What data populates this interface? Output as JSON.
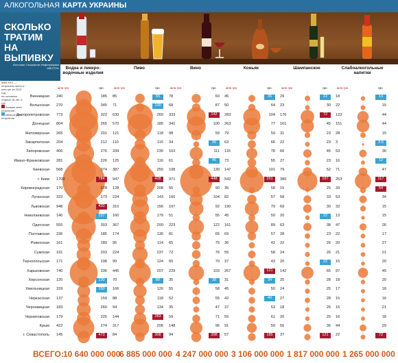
{
  "header": {
    "title_a": "АЛКОГОЛЬНАЯ",
    "title_b": "КАРТА УКРАИНЫ"
  },
  "hero": {
    "title": "СКОЛЬКО ТРАТИМ НА ВЫПИВКУ",
    "source": "Источник: Госкомстат Инфографика «ВЕСТИ»"
  },
  "legend": {
    "item1": "XXX — потрачено всего в млн грн за 2012 год",
    "item2": "на человека старше 18 лет, в грн",
    "item3": "больше всех потратили",
    "item4": "меньше всех потратили",
    "xxx": "XXX"
  },
  "colors": {
    "orange": "#ea7a3a",
    "dark_red": "#a8182e",
    "blue": "#3ba3d4",
    "brown": "#7a441c"
  },
  "categories": [
    {
      "label": "Водка и ликеро-водочные изделия",
      "total": "10 640 000 000",
      "icon": "vodka-bottle-icon"
    },
    {
      "label": "Пиво",
      "total": "6 885 000 000",
      "icon": "beer-icon"
    },
    {
      "label": "Вино",
      "total": "4 247 000 000",
      "icon": "wine-icon"
    },
    {
      "label": "Коньяк",
      "total": "3 106 000 000",
      "icon": "cognac-icon"
    },
    {
      "label": "Шампанское",
      "total": "1 817 000 000",
      "icon": "champagne-icon"
    },
    {
      "label": "Слабоалкогольные напитки",
      "total": "1 265 000 000",
      "icon": "low-alcohol-icon"
    }
  ],
  "col_headers": {
    "mln": "млн грн",
    "per": "грн"
  },
  "total_label": "ВСЕГО:",
  "rows": [
    {
      "name": "Винницкая",
      "v": [
        [
          "240",
          "185"
        ],
        [
          "85",
          "55"
        ],
        [
          "78",
          "60"
        ],
        [
          "45",
          "35"
        ],
        [
          "29",
          "22"
        ],
        [
          "18",
          "13"
        ]
      ]
    },
    {
      "name": "Волынская",
      "v": [
        [
          "270",
          "345"
        ],
        [
          "71",
          "100"
        ],
        [
          "68",
          "87"
        ],
        [
          "50",
          "64"
        ],
        [
          "23",
          "30"
        ],
        [
          "22",
          "15"
        ]
      ]
    },
    {
      "name": "Днепропетровская",
      "v": [
        [
          "773",
          "322"
        ],
        [
          "630",
          "260"
        ],
        [
          "333",
          "142"
        ],
        [
          "283",
          "104"
        ],
        [
          "176",
          "72"
        ],
        [
          "123",
          "44"
        ]
      ]
    },
    {
      "name": "Донецкая",
      "v": [
        [
          "804",
          "265"
        ],
        [
          "570",
          "185"
        ],
        [
          "341",
          "100"
        ],
        [
          "263",
          "77"
        ],
        [
          "161",
          "45"
        ],
        [
          "151",
          "44"
        ]
      ]
    },
    {
      "name": "Житомирская",
      "v": [
        [
          "265",
          "201"
        ],
        [
          "121",
          "118"
        ],
        [
          "98",
          "59"
        ],
        [
          "79",
          "59"
        ],
        [
          "31",
          "23"
        ],
        [
          "28",
          "15"
        ]
      ]
    },
    {
      "name": "Закарпатская",
      "v": [
        [
          "204",
          "212"
        ],
        [
          "110",
          "115"
        ],
        [
          "34",
          "36"
        ],
        [
          "63",
          "66"
        ],
        [
          "22",
          "23"
        ],
        [
          "3",
          "3.5"
        ]
      ]
    },
    {
      "name": "Запорожская",
      "v": [
        [
          "406",
          "276"
        ],
        [
          "339",
          "230"
        ],
        [
          "163",
          "111"
        ],
        [
          "115",
          "78"
        ],
        [
          "66",
          "45"
        ],
        [
          "53",
          "36"
        ]
      ]
    },
    {
      "name": "Ивано-Франковская",
      "v": [
        [
          "281",
          "226"
        ],
        [
          "125",
          "116"
        ],
        [
          "61",
          "46"
        ],
        [
          "73",
          "55"
        ],
        [
          "27",
          "23"
        ],
        [
          "16",
          "12"
        ]
      ]
    },
    {
      "name": "Киевская",
      "v": [
        [
          "568",
          "374"
        ],
        [
          "387",
          "255"
        ],
        [
          "198",
          "130"
        ],
        [
          "147",
          "101"
        ],
        [
          "79",
          "52"
        ],
        [
          "71",
          "47"
        ]
      ]
    },
    {
      "name": "г. Киев",
      "v": [
        [
          "1709",
          "784"
        ],
        [
          "947",
          "438"
        ],
        [
          "971",
          "448"
        ],
        [
          "542",
          "251"
        ],
        [
          "380",
          "167"
        ],
        [
          "253",
          "117"
        ]
      ]
    },
    {
      "name": "Кировоградская",
      "v": [
        [
          "170",
          "278"
        ],
        [
          "128",
          "208"
        ],
        [
          "55",
          "90"
        ],
        [
          "35",
          "58"
        ],
        [
          "15",
          "25"
        ],
        [
          "33",
          "54"
        ]
      ]
    },
    {
      "name": "Луганская",
      "v": [
        [
          "323",
          "173"
        ],
        [
          "224",
          "143"
        ],
        [
          "160",
          "104"
        ],
        [
          "82",
          "57"
        ],
        [
          "58",
          "33"
        ],
        [
          "53",
          "34"
        ]
      ]
    },
    {
      "name": "Львовская",
      "v": [
        [
          "948",
          "420"
        ],
        [
          "310",
          "156"
        ],
        [
          "197",
          "92"
        ],
        [
          "190",
          "79"
        ],
        [
          "69",
          "30"
        ],
        [
          "32",
          "15"
        ]
      ]
    },
    {
      "name": "Николаевская",
      "v": [
        [
          "140",
          "157"
        ],
        [
          "160",
          "179"
        ],
        [
          "51",
          "55"
        ],
        [
          "45",
          "50"
        ],
        [
          "20",
          "22"
        ],
        [
          "13",
          "15"
        ]
      ]
    },
    {
      "name": "Одесская",
      "v": [
        [
          "555",
          "303"
        ],
        [
          "367",
          "200"
        ],
        [
          "223",
          "122"
        ],
        [
          "161",
          "89"
        ],
        [
          "63",
          "38"
        ],
        [
          "47",
          "26"
        ]
      ]
    },
    {
      "name": "Полтавская",
      "v": [
        [
          "236",
          "185"
        ],
        [
          "174",
          "136"
        ],
        [
          "81",
          "65"
        ],
        [
          "69",
          "57"
        ],
        [
          "28",
          "23"
        ],
        [
          "22",
          "17"
        ]
      ]
    },
    {
      "name": "Ровенская",
      "v": [
        [
          "161",
          "189"
        ],
        [
          "95",
          "114"
        ],
        [
          "65",
          "75"
        ],
        [
          "36",
          "42"
        ],
        [
          "22",
          "26"
        ],
        [
          "20",
          "27"
        ]
      ]
    },
    {
      "name": "Сумская",
      "v": [
        [
          "191",
          "203"
        ],
        [
          "224",
          "237"
        ],
        [
          "72",
          "76"
        ],
        [
          "55",
          "58"
        ],
        [
          "24",
          "26"
        ],
        [
          "21",
          "21"
        ]
      ]
    },
    {
      "name": "Тернопольская",
      "v": [
        [
          "171",
          "198"
        ],
        [
          "99",
          "124"
        ],
        [
          "50",
          "70"
        ],
        [
          "37",
          "43"
        ],
        [
          "20",
          "22"
        ],
        [
          "15",
          "20"
        ]
      ]
    },
    {
      "name": "Харьковская",
      "v": [
        [
          "740",
          "336"
        ],
        [
          "445",
          "207"
        ],
        [
          "229",
          "103"
        ],
        [
          "267",
          "121"
        ],
        [
          "142",
          "65"
        ],
        [
          "97",
          "45"
        ]
      ]
    },
    {
      "name": "Херсонская",
      "v": [
        [
          "120",
          "130"
        ],
        [
          "70",
          "80"
        ],
        [
          "35",
          "38"
        ],
        [
          "31",
          "34"
        ],
        [
          "25",
          "28"
        ],
        [
          "18",
          "20"
        ]
      ]
    },
    {
      "name": "Хмельницкая",
      "v": [
        [
          "159",
          "150"
        ],
        [
          "166",
          "126"
        ],
        [
          "55",
          "58"
        ],
        [
          "45",
          "50"
        ],
        [
          "24",
          "25"
        ],
        [
          "17",
          "18"
        ]
      ]
    },
    {
      "name": "Черкасская",
      "v": [
        [
          "137",
          "159"
        ],
        [
          "88",
          "118"
        ],
        [
          "52",
          "55"
        ],
        [
          "42",
          "40"
        ],
        [
          "27",
          "28"
        ],
        [
          "15",
          "16"
        ]
      ]
    },
    {
      "name": "Черновицкая",
      "v": [
        [
          "183",
          "260"
        ],
        [
          "94",
          "134"
        ],
        [
          "35",
          "47"
        ],
        [
          "37",
          "53"
        ],
        [
          "18",
          "26"
        ],
        [
          "15",
          "21"
        ]
      ]
    },
    {
      "name": "Черниговская",
      "v": [
        [
          "179",
          "225"
        ],
        [
          "144",
          "283"
        ],
        [
          "59",
          "71"
        ],
        [
          "55",
          "61"
        ],
        [
          "20",
          "25"
        ],
        [
          "16",
          "18"
        ]
      ]
    },
    {
      "name": "Крым",
      "v": [
        [
          "422",
          "274"
        ],
        [
          "317",
          "206"
        ],
        [
          "148",
          "96"
        ],
        [
          "91",
          "59"
        ],
        [
          "56",
          "36"
        ],
        [
          "44",
          "29"
        ]
      ]
    },
    {
      "name": "г. Севастополь",
      "v": [
        [
          "145",
          "473"
        ],
        [
          "84",
          "308"
        ],
        [
          "94",
          "308"
        ],
        [
          "57",
          "185"
        ],
        [
          "37",
          "121"
        ],
        [
          "22",
          "72"
        ]
      ]
    }
  ]
}
